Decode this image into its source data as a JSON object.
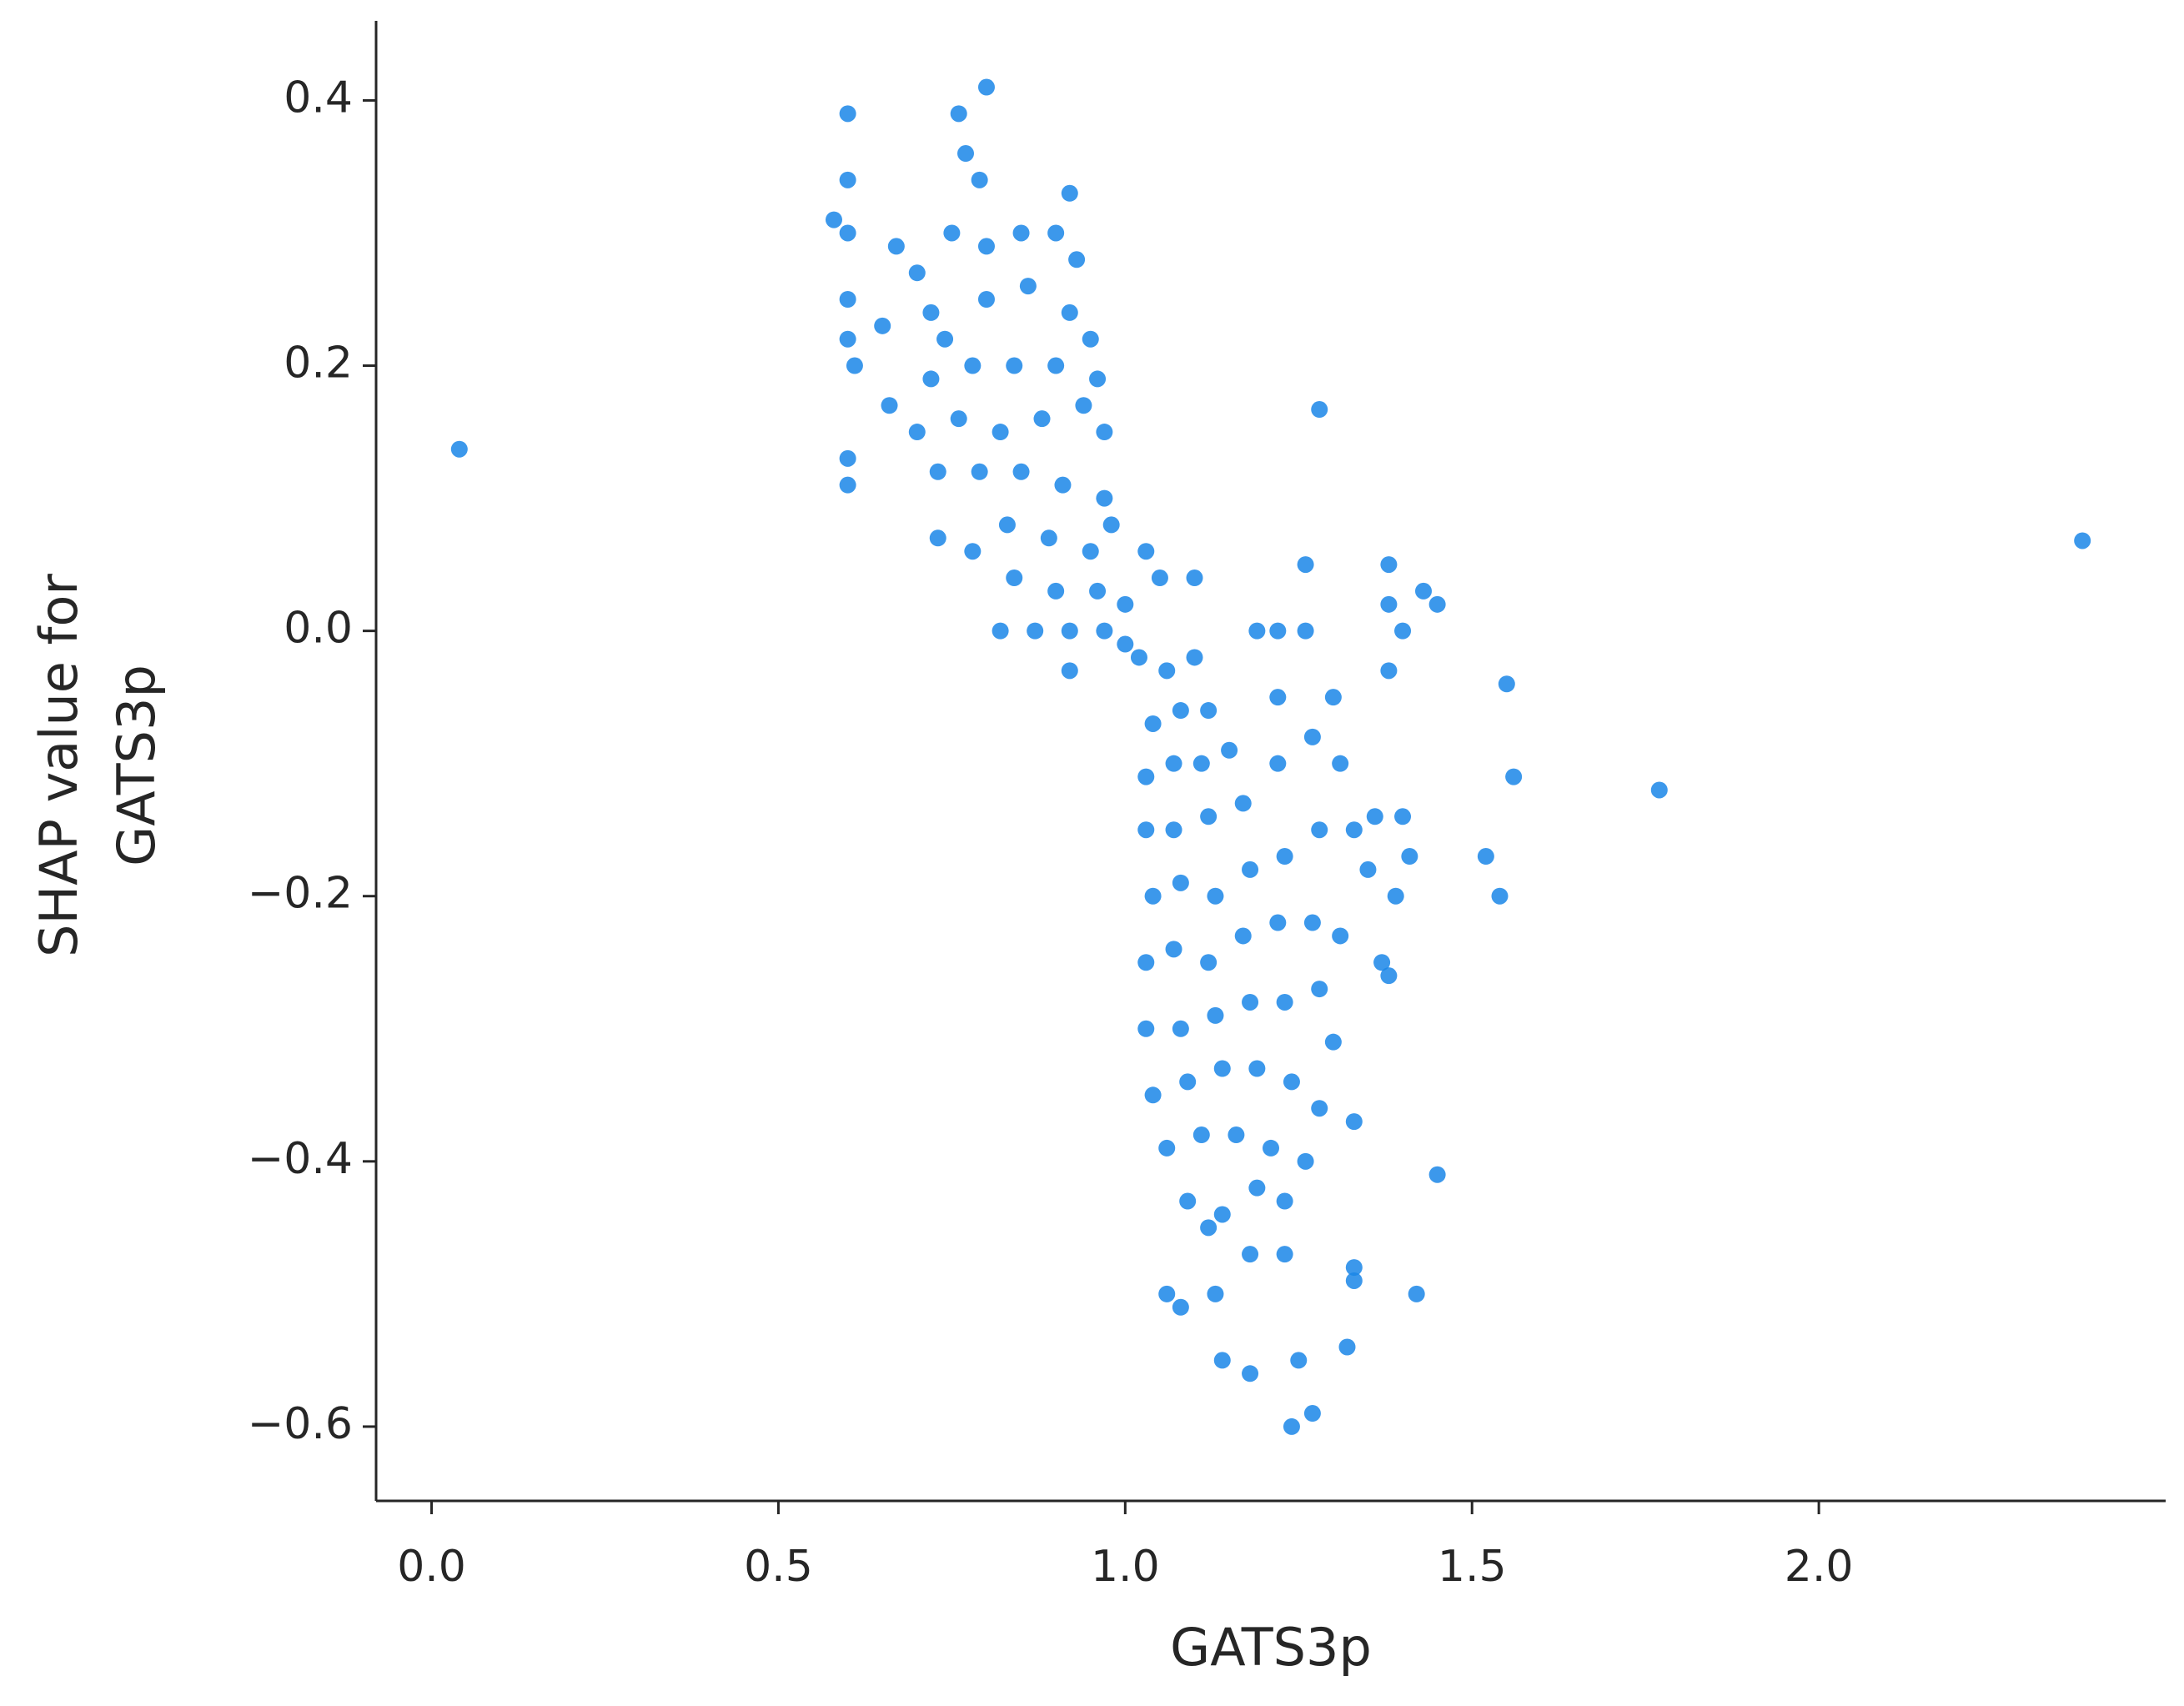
{
  "chart_data": {
    "type": "scatter",
    "xlabel": "GATS3p",
    "ylabel": [
      "SHAP value for",
      "GATS3p"
    ],
    "color": "#1a86e8",
    "xlim": [
      -0.08,
      2.5
    ],
    "ylim": [
      -0.656,
      0.46
    ],
    "xticks": [
      {
        "value": 0,
        "label": "0.0"
      },
      {
        "value": 0.5,
        "label": "0.5"
      },
      {
        "value": 1,
        "label": "1.0"
      },
      {
        "value": 1.5,
        "label": "1.5"
      },
      {
        "value": 2,
        "label": "2.0"
      }
    ],
    "yticks": [
      0.4,
      0.2,
      {
        "value": 0,
        "label": "0.0"
      },
      {
        "value": -0.2,
        "label": "−0.2"
      },
      {
        "value": -0.4,
        "label": "−0.4"
      },
      {
        "value": -0.6,
        "label": "−0.6"
      }
    ],
    "grid": false,
    "x": [
      0.04,
      2.38,
      1.77,
      1.28,
      1.55,
      1.56,
      1.52,
      1.54,
      1.45,
      1.42,
      1.32,
      1.24,
      1.25,
      1.27,
      1.33,
      1.33,
      1.14,
      1.18,
      1.08,
      1.06,
      1.13,
      1.23,
      1.18,
      0.6,
      0.6,
      0.58,
      0.6,
      0.6,
      0.6,
      0.61,
      0.6,
      0.6,
      0.65,
      0.66,
      0.67,
      0.7,
      0.72,
      0.76,
      0.77,
      0.8,
      0.79,
      0.92,
      0.75,
      0.8,
      0.85,
      0.9,
      0.93,
      0.74,
      0.8,
      0.86,
      0.92,
      0.95,
      0.72,
      0.78,
      0.84,
      0.9,
      0.96,
      0.7,
      0.76,
      0.82,
      0.88,
      0.94,
      0.97,
      0.73,
      0.79,
      0.85,
      0.91,
      0.97,
      0.73,
      0.78,
      0.83,
      0.89,
      0.95,
      0.98,
      0.84,
      0.9,
      0.96,
      1.0,
      0.82,
      0.87,
      0.92,
      0.97,
      0.92,
      1.0,
      1.03,
      1.05,
      1.1,
      1.02,
      1.06,
      1.1,
      1.04,
      1.08,
      1.12,
      1.03,
      1.07,
      1.11,
      1.15,
      1.19,
      1.22,
      1.26,
      1.26,
      1.38,
      1.38,
      1.43,
      1.45,
      1.4,
      1.38,
      1.3,
      1.22,
      1.03,
      1.07,
      1.12,
      1.17,
      1.22,
      1.27,
      1.31,
      1.36,
      1.4,
      1.41,
      1.39,
      1.04,
      1.08,
      1.13,
      1.18,
      1.23,
      1.28,
      1.33,
      1.35,
      1.03,
      1.07,
      1.12,
      1.17,
      1.22,
      1.27,
      1.31,
      1.37,
      1.38,
      1.03,
      1.08,
      1.13,
      1.18,
      1.23,
      1.28,
      1.3,
      1.04,
      1.09,
      1.14,
      1.19,
      1.24,
      1.28,
      1.33,
      1.06,
      1.11,
      1.16,
      1.21,
      1.26,
      1.09,
      1.14,
      1.19,
      1.23,
      1.12
    ],
    "values": [
      0.137,
      0.068,
      -0.12,
      0.167,
      -0.04,
      -0.11,
      -0.17,
      -0.2,
      -0.41,
      -0.5,
      -0.54,
      -0.6,
      -0.55,
      -0.59,
      -0.48,
      -0.49,
      -0.55,
      -0.56,
      -0.51,
      -0.5,
      -0.5,
      -0.47,
      -0.47,
      0.39,
      0.34,
      0.31,
      0.3,
      0.25,
      0.22,
      0.2,
      0.13,
      0.11,
      0.23,
      0.17,
      0.29,
      0.27,
      0.24,
      0.39,
      0.36,
      0.41,
      0.34,
      0.33,
      0.3,
      0.29,
      0.3,
      0.3,
      0.28,
      0.22,
      0.25,
      0.26,
      0.24,
      0.22,
      0.19,
      0.2,
      0.2,
      0.2,
      0.19,
      0.15,
      0.16,
      0.15,
      0.16,
      0.17,
      0.15,
      0.12,
      0.12,
      0.12,
      0.11,
      0.1,
      0.07,
      0.06,
      0.08,
      0.07,
      0.06,
      0.08,
      0.04,
      0.03,
      0.03,
      0.02,
      0,
      0,
      0,
      0,
      -0.03,
      -0.01,
      0.06,
      0.04,
      0.04,
      -0.02,
      -0.03,
      -0.02,
      -0.07,
      -0.06,
      -0.06,
      -0.11,
      -0.1,
      -0.1,
      -0.09,
      0,
      0,
      0,
      0.05,
      0.05,
      0.02,
      0.03,
      0.02,
      0,
      -0.03,
      -0.05,
      -0.05,
      -0.15,
      -0.15,
      -0.14,
      -0.13,
      -0.1,
      -0.08,
      -0.1,
      -0.14,
      -0.14,
      -0.17,
      -0.2,
      -0.2,
      -0.19,
      -0.2,
      -0.18,
      -0.17,
      -0.15,
      -0.15,
      -0.18,
      -0.25,
      -0.24,
      -0.25,
      -0.23,
      -0.22,
      -0.22,
      -0.23,
      -0.25,
      -0.26,
      -0.3,
      -0.3,
      -0.29,
      -0.28,
      -0.28,
      -0.27,
      -0.31,
      -0.35,
      -0.34,
      -0.33,
      -0.33,
      -0.34,
      -0.36,
      -0.37,
      -0.39,
      -0.38,
      -0.38,
      -0.39,
      -0.4,
      -0.43,
      -0.44,
      -0.42,
      -0.43,
      -0.45
    ]
  }
}
